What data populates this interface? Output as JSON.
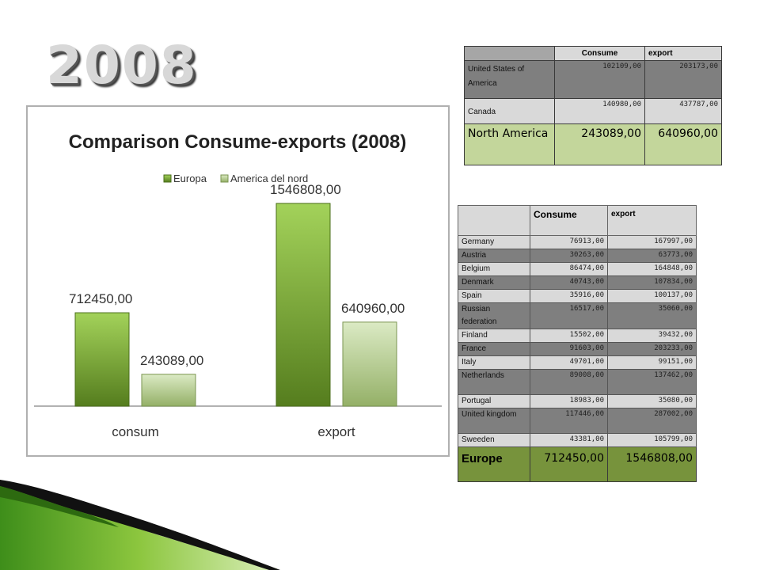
{
  "year_title": "2008",
  "chart_data": {
    "type": "bar",
    "title": "Comparison  Consume-exports (2008)",
    "categories": [
      "consum",
      "export"
    ],
    "series": [
      {
        "name": "Europa",
        "values": [
          712450,
          1546808
        ],
        "labels": [
          "712450,00",
          "1546808,00"
        ],
        "color": "#7ab030"
      },
      {
        "name": "America del nord",
        "values": [
          243089,
          640960
        ],
        "labels": [
          "243089,00",
          "640960,00"
        ],
        "color": "#b5d08a"
      }
    ],
    "ylim": [
      0,
      1800000
    ],
    "grid": false,
    "legend": "top"
  },
  "na_table": {
    "headers": [
      "",
      "Consume",
      "export"
    ],
    "rows": [
      {
        "name": "United States of America",
        "consume": "102109,00",
        "export": "203173,00"
      },
      {
        "name": "Canada",
        "consume": "140980,00",
        "export": "437787,00"
      }
    ],
    "total": {
      "name": "North America",
      "consume": "243089,00",
      "export": "640960,00"
    }
  },
  "eu_table": {
    "headers": [
      "",
      "Consume",
      "export"
    ],
    "rows": [
      {
        "name": "Germany",
        "consume": "76913,00",
        "export": "167997,00"
      },
      {
        "name": "Austria",
        "consume": "30263,00",
        "export": "63773,00"
      },
      {
        "name": "Belgium",
        "consume": "86474,00",
        "export": "164848,00"
      },
      {
        "name": "Denmark",
        "consume": "40743,00",
        "export": "107834,00"
      },
      {
        "name": "Spain",
        "consume": "35916,00",
        "export": "100137,00"
      },
      {
        "name": "Russian federation",
        "consume": "16517,00",
        "export": "35060,00"
      },
      {
        "name": "Finland",
        "consume": "15502,00",
        "export": "39432,00"
      },
      {
        "name": "France",
        "consume": "91603,00",
        "export": "203233,00"
      },
      {
        "name": "Italy",
        "consume": "49701,00",
        "export": "99151,00"
      },
      {
        "name": "Netherlands",
        "consume": "89008,00",
        "export": "137462,00"
      },
      {
        "name": "Portugal",
        "consume": "18983,00",
        "export": "35080,00"
      },
      {
        "name": "United kingdom",
        "consume": "117446,00",
        "export": "287002,00"
      },
      {
        "name": "Sweeden",
        "consume": "43381,00",
        "export": "105799,00"
      }
    ],
    "total": {
      "name": "Europe",
      "consume": "712450,00",
      "export": "1546808,00"
    }
  }
}
